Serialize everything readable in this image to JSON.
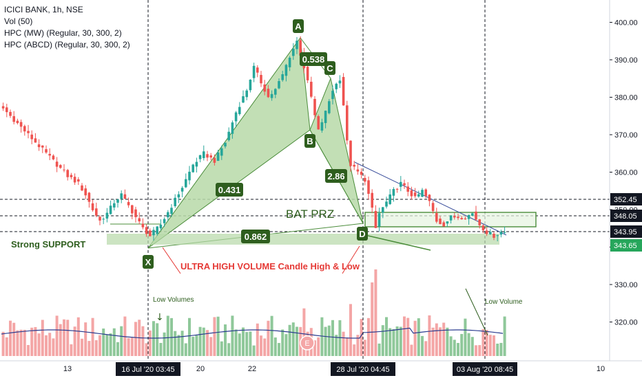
{
  "legend": {
    "symbol": "ICICI BANK, 1h, NSE",
    "vol": "Vol (50)",
    "hpc_mw": "HPC (MW) (Regular, 30, 300, 2)",
    "hpc_abcd": "HPC (ABCD) (Regular, 30, 300, 2)"
  },
  "colors": {
    "up": "#26a69a",
    "down": "#ef5350",
    "vol_up": "#8fc89a",
    "vol_down": "#f4a6a6",
    "pattern_fill": "#b7d9a8",
    "pattern_line": "#4a8c3a",
    "label_bg": "#2e5e1e",
    "grid_text": "#131722",
    "annotation_red": "#e53935",
    "axis_tag_bg": "#131722",
    "tag_green": "#26a65b",
    "trendline": "#3b4f9c"
  },
  "annotations": {
    "point_labels": [
      "A",
      "B",
      "C",
      "D",
      "X"
    ],
    "ratios": [
      "0.538",
      "0.431",
      "2.86",
      "0.862"
    ],
    "bat_prz": "BAT  PRZ",
    "strong_support": "Strong SUPPORT",
    "ultra_high_volume": "ULTRA HIGH VOLUME Candle High & Low",
    "low_volumes": "Low Volumes",
    "low_volume": "Low Volume",
    "event_marker": "E"
  },
  "price_tags": [
    "352.45",
    "348.05",
    "343.95",
    "343.65"
  ],
  "x_tags": [
    "16 Jul '20   03:45",
    "28 Jul '20   04:45",
    "03 Aug '20   08:45"
  ],
  "chart_data": {
    "type": "candlestick",
    "title": "ICICI BANK, 1h, NSE",
    "y_axis": {
      "ticks": [
        320,
        330,
        340,
        350,
        360,
        370,
        380,
        390,
        400
      ],
      "ylim": [
        311.5,
        403.5
      ],
      "tick_labels": [
        "320.00",
        "330.00",
        "340.00",
        "350.00",
        "360.00",
        "370.00",
        "380.00",
        "390.00",
        "400.00"
      ]
    },
    "x_axis": {
      "tick_labels": [
        "13",
        "16 Jul '20",
        "20",
        "22",
        "28 Jul '20",
        "03 Aug '20",
        "10"
      ]
    },
    "harmonic_pattern": {
      "name": "BAT",
      "points": {
        "X": 342.0,
        "A": 396.0,
        "B": 369.5,
        "C": 386.0,
        "D": 343.9
      },
      "ratios": {
        "XB": 0.431,
        "AC": 0.538,
        "BD": 2.86,
        "XD": 0.862
      }
    },
    "levels": [
      352.45,
      348.05,
      343.95,
      343.65
    ],
    "price_path": [
      {
        "t": 0,
        "p": 378
      },
      {
        "t": 2,
        "p": 376
      },
      {
        "t": 5,
        "p": 373
      },
      {
        "t": 8,
        "p": 370
      },
      {
        "t": 11,
        "p": 367
      },
      {
        "t": 14,
        "p": 364
      },
      {
        "t": 17,
        "p": 361
      },
      {
        "t": 19,
        "p": 359
      },
      {
        "t": 22,
        "p": 357
      },
      {
        "t": 24,
        "p": 354
      },
      {
        "t": 26,
        "p": 350
      },
      {
        "t": 28,
        "p": 347
      },
      {
        "t": 30,
        "p": 349
      },
      {
        "t": 32,
        "p": 352
      },
      {
        "t": 34,
        "p": 354
      },
      {
        "t": 36,
        "p": 351
      },
      {
        "t": 38,
        "p": 348
      },
      {
        "t": 40,
        "p": 345
      },
      {
        "t": 42,
        "p": 343
      },
      {
        "t": 45,
        "p": 346
      },
      {
        "t": 48,
        "p": 351
      },
      {
        "t": 51,
        "p": 356
      },
      {
        "t": 54,
        "p": 362
      },
      {
        "t": 57,
        "p": 365
      },
      {
        "t": 60,
        "p": 363
      },
      {
        "t": 63,
        "p": 368
      },
      {
        "t": 66,
        "p": 376
      },
      {
        "t": 69,
        "p": 382
      },
      {
        "t": 71,
        "p": 388
      },
      {
        "t": 73,
        "p": 384
      },
      {
        "t": 75,
        "p": 380
      },
      {
        "t": 77,
        "p": 382
      },
      {
        "t": 79,
        "p": 386
      },
      {
        "t": 81,
        "p": 391
      },
      {
        "t": 83,
        "p": 395
      },
      {
        "t": 85,
        "p": 388
      },
      {
        "t": 87,
        "p": 380
      },
      {
        "t": 88,
        "p": 375
      },
      {
        "t": 89,
        "p": 371
      },
      {
        "t": 91,
        "p": 376
      },
      {
        "t": 93,
        "p": 382
      },
      {
        "t": 95,
        "p": 385
      },
      {
        "t": 96,
        "p": 378
      },
      {
        "t": 97,
        "p": 368
      },
      {
        "t": 98,
        "p": 362
      },
      {
        "t": 100,
        "p": 360
      },
      {
        "t": 102,
        "p": 358
      },
      {
        "t": 104,
        "p": 350
      },
      {
        "t": 105,
        "p": 345
      },
      {
        "t": 106,
        "p": 349
      },
      {
        "t": 108,
        "p": 352
      },
      {
        "t": 110,
        "p": 355
      },
      {
        "t": 112,
        "p": 357
      },
      {
        "t": 114,
        "p": 355
      },
      {
        "t": 116,
        "p": 353
      },
      {
        "t": 118,
        "p": 355
      },
      {
        "t": 120,
        "p": 352
      },
      {
        "t": 122,
        "p": 347
      },
      {
        "t": 124,
        "p": 346
      },
      {
        "t": 126,
        "p": 348
      },
      {
        "t": 128,
        "p": 348
      },
      {
        "t": 130,
        "p": 348
      },
      {
        "t": 132,
        "p": 349
      },
      {
        "t": 134,
        "p": 346
      },
      {
        "t": 136,
        "p": 344
      },
      {
        "t": 138,
        "p": 343
      },
      {
        "t": 140,
        "p": 344
      }
    ],
    "volume_series": {
      "ma_level": 0.35,
      "spikes": [
        {
          "t": 104,
          "v": 1.0
        },
        {
          "t": 103,
          "v": 0.85
        },
        {
          "t": 97,
          "v": 0.6
        },
        {
          "t": 84,
          "v": 0.55
        }
      ]
    }
  }
}
